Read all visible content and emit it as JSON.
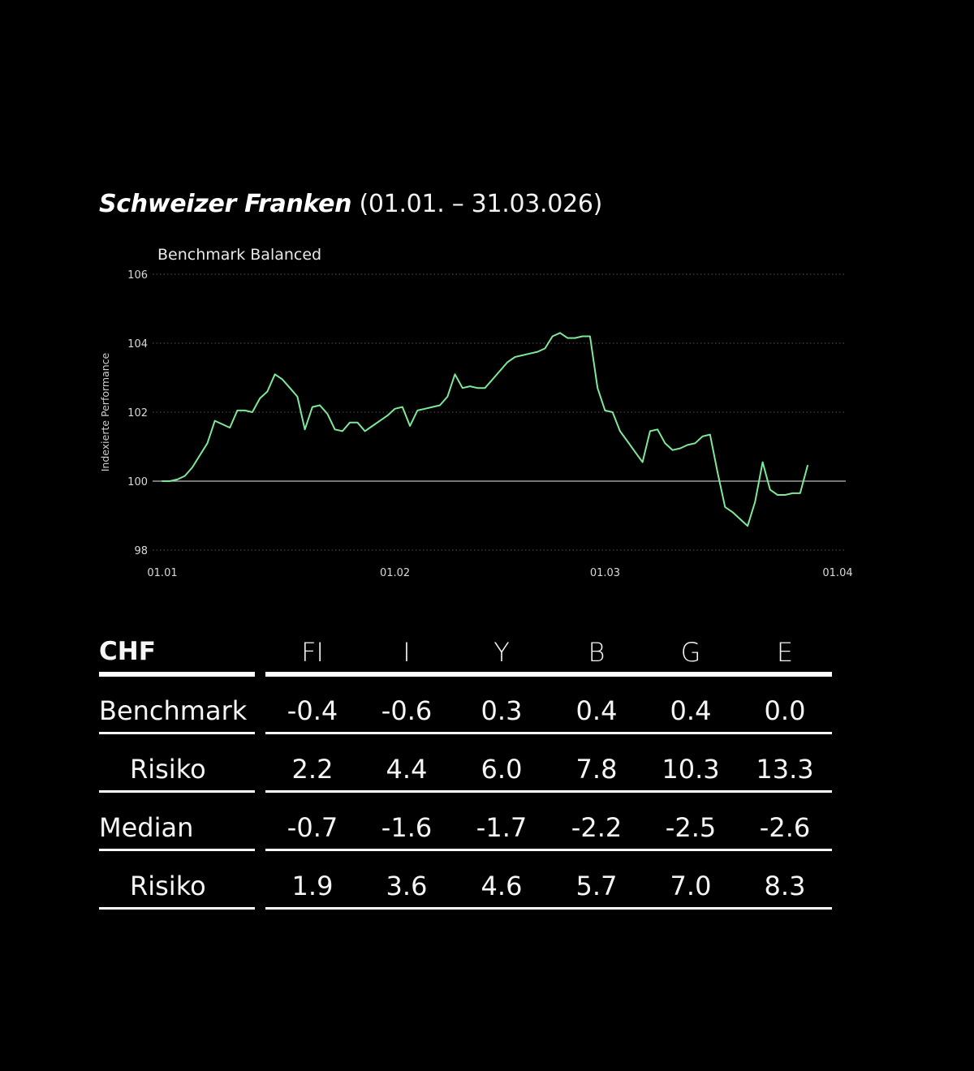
{
  "title": {
    "main": "Schweizer Franken",
    "period": "(01.01. – 31.03.026)"
  },
  "colors": {
    "background": "#000000",
    "line": "#7ee89a",
    "baseline": "#bbbbbb",
    "grid": "#555555",
    "text": "#ffffff"
  },
  "chart_data": {
    "type": "line",
    "title": "Benchmark Balanced",
    "ylabel": "Indexierte Performance",
    "xlabel": "",
    "ylim": [
      98,
      106
    ],
    "yticks": [
      98,
      100,
      102,
      104,
      106
    ],
    "xticks": [
      {
        "label": "01.01",
        "day": 0
      },
      {
        "label": "01.02",
        "day": 31
      },
      {
        "label": "01.03",
        "day": 59
      },
      {
        "label": "01.04",
        "day": 90
      }
    ],
    "baseline": 100,
    "grid": true,
    "series": [
      {
        "values": [
          [
            0,
            100.0
          ],
          [
            1,
            100.0
          ],
          [
            2,
            100.05
          ],
          [
            3,
            100.15
          ],
          [
            4,
            100.4
          ],
          [
            5,
            100.75
          ],
          [
            6,
            101.1
          ],
          [
            7,
            101.75
          ],
          [
            8,
            101.65
          ],
          [
            9,
            101.55
          ],
          [
            10,
            102.05
          ],
          [
            11,
            102.05
          ],
          [
            12,
            102.0
          ],
          [
            13,
            102.4
          ],
          [
            14,
            102.6
          ],
          [
            15,
            103.1
          ],
          [
            16,
            102.95
          ],
          [
            17,
            102.7
          ],
          [
            18,
            102.45
          ],
          [
            19,
            101.5
          ],
          [
            20,
            102.15
          ],
          [
            21,
            102.2
          ],
          [
            22,
            101.95
          ],
          [
            23,
            101.5
          ],
          [
            24,
            101.45
          ],
          [
            25,
            101.7
          ],
          [
            26,
            101.7
          ],
          [
            27,
            101.45
          ],
          [
            28,
            101.6
          ],
          [
            29,
            101.75
          ],
          [
            30,
            101.9
          ],
          [
            31,
            102.1
          ],
          [
            32,
            102.15
          ],
          [
            33,
            101.6
          ],
          [
            34,
            102.05
          ],
          [
            35,
            102.1
          ],
          [
            36,
            102.15
          ],
          [
            37,
            102.2
          ],
          [
            38,
            102.45
          ],
          [
            39,
            103.1
          ],
          [
            40,
            102.7
          ],
          [
            41,
            102.75
          ],
          [
            42,
            102.7
          ],
          [
            43,
            102.7
          ],
          [
            44,
            102.95
          ],
          [
            45,
            103.2
          ],
          [
            46,
            103.45
          ],
          [
            47,
            103.6
          ],
          [
            48,
            103.65
          ],
          [
            49,
            103.7
          ],
          [
            50,
            103.75
          ],
          [
            51,
            103.85
          ],
          [
            52,
            104.2
          ],
          [
            53,
            104.3
          ],
          [
            54,
            104.15
          ],
          [
            55,
            104.15
          ],
          [
            56,
            104.2
          ],
          [
            57,
            104.2
          ],
          [
            58,
            102.7
          ],
          [
            59,
            102.05
          ],
          [
            60,
            102.0
          ],
          [
            61,
            101.45
          ],
          [
            62,
            101.15
          ],
          [
            63,
            100.85
          ],
          [
            64,
            100.55
          ],
          [
            65,
            101.45
          ],
          [
            66,
            101.5
          ],
          [
            67,
            101.1
          ],
          [
            68,
            100.9
          ],
          [
            69,
            100.95
          ],
          [
            70,
            101.05
          ],
          [
            71,
            101.1
          ],
          [
            72,
            101.3
          ],
          [
            73,
            101.35
          ],
          [
            74,
            100.25
          ],
          [
            75,
            99.25
          ],
          [
            76,
            99.1
          ],
          [
            77,
            98.9
          ],
          [
            78,
            98.7
          ],
          [
            79,
            99.4
          ],
          [
            80,
            100.55
          ],
          [
            81,
            99.75
          ],
          [
            82,
            99.6
          ],
          [
            83,
            99.6
          ],
          [
            84,
            99.65
          ],
          [
            85,
            99.65
          ],
          [
            86,
            100.45
          ]
        ]
      }
    ]
  },
  "table": {
    "corner": "CHF",
    "columns": [
      "FI",
      "I",
      "Y",
      "B",
      "G",
      "E"
    ],
    "rows": [
      {
        "label": "Benchmark",
        "indent": false,
        "values": [
          "-0.4",
          "-0.6",
          "0.3",
          "0.4",
          "0.4",
          "0.0"
        ]
      },
      {
        "label": "Risiko",
        "indent": true,
        "values": [
          "2.2",
          "4.4",
          "6.0",
          "7.8",
          "10.3",
          "13.3"
        ]
      },
      {
        "label": "Median",
        "indent": false,
        "values": [
          "-0.7",
          "-1.6",
          "-1.7",
          "-2.2",
          "-2.5",
          "-2.6"
        ]
      },
      {
        "label": "Risiko",
        "indent": true,
        "values": [
          "1.9",
          "3.6",
          "4.6",
          "5.7",
          "7.0",
          "8.3"
        ]
      }
    ]
  }
}
